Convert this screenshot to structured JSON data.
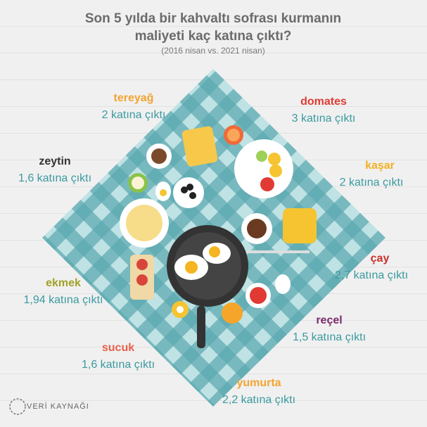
{
  "header": {
    "title_lines": [
      "Son 5 yılda bir kahvaltı sofrası kurmanın",
      "maliyeti  kaç katına çıktı?"
    ],
    "subtitle": "(2016 nisan vs. 2021 nisan)"
  },
  "items": [
    {
      "name": "tereyağ",
      "change": "2 katına çıktı",
      "color": "#f2a431"
    },
    {
      "name": "domates",
      "change": "3 katına çıktı",
      "color": "#e03a33"
    },
    {
      "name": "zeytin",
      "change": "1,6 katına çıktı",
      "color": "#333333"
    },
    {
      "name": "kaşar",
      "change": "2 katına çıktı",
      "color": "#f2b124"
    },
    {
      "name": "çay",
      "change": "2,7 katına çıktı",
      "color": "#c8312b"
    },
    {
      "name": "ekmek",
      "change": "1,94 katına çıktı",
      "color": "#a1a126"
    },
    {
      "name": "reçel",
      "change": "1,5 katına çıktı",
      "color": "#7a2a6a"
    },
    {
      "name": "sucuk",
      "change": "1,6 katına çıktı",
      "color": "#e8614b"
    },
    {
      "name": "yumurta",
      "change": "2,2 katına çıktı",
      "color": "#f2a431"
    }
  ],
  "logo": "VERİ KAYNAĞI"
}
